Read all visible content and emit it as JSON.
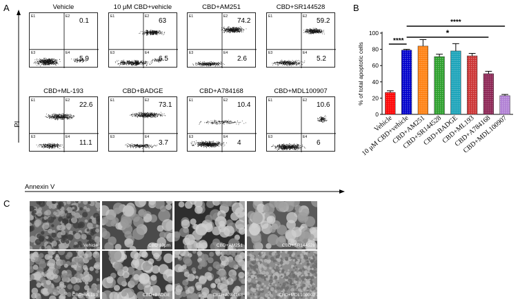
{
  "panel_a": {
    "letter": "A",
    "y_axis_label": "PI",
    "x_axis_label": "Annexin V",
    "quadrant_labels": [
      "E1",
      "E2",
      "E3",
      "E4"
    ],
    "plots": [
      {
        "title": "Vehicle",
        "upper_right": "0.1",
        "lower_right": "5.9"
      },
      {
        "title": "10 μM CBD+vehicle",
        "upper_right": "63",
        "lower_right": "6.5"
      },
      {
        "title": "CBD+AM251",
        "upper_right": "74.2",
        "lower_right": "2.6"
      },
      {
        "title": "CBD+SR144528",
        "upper_right": "59.2",
        "lower_right": "5.2"
      },
      {
        "title": "CBD+ML-193",
        "upper_right": "22.6",
        "lower_right": "11.1"
      },
      {
        "title": "CBD+BADGE",
        "upper_right": "73.1",
        "lower_right": "3.7"
      },
      {
        "title": "CBD+A784168",
        "upper_right": "10.4",
        "lower_right": "4"
      },
      {
        "title": "CBD+MDL100907",
        "upper_right": "10.6",
        "lower_right": "6"
      }
    ]
  },
  "panel_b": {
    "letter": "B",
    "significance": {
      "top": "****",
      "middle": "*",
      "left": "****"
    }
  },
  "chart_data": {
    "type": "bar",
    "title": "",
    "xlabel": "",
    "ylabel": "% of total apoptotic cells",
    "ylim": [
      0,
      100
    ],
    "yticks": [
      "0",
      "20",
      "40",
      "60",
      "80",
      "100"
    ],
    "categories": [
      "Vehicle",
      "10 μM CBD+vehicle",
      "CBD+AM251",
      "CBD+SR144528",
      "CBD+BADGE",
      "CBD+ML193",
      "CBD+A784168",
      "CBD+MDL100907"
    ],
    "values": [
      27,
      79,
      84,
      71,
      78,
      72,
      50,
      23
    ],
    "errors": [
      2,
      1,
      8,
      3,
      9,
      3,
      3,
      1.5
    ],
    "colors": [
      "#ff0000",
      "#0000cc",
      "#ff7f0e",
      "#2ca02c",
      "#17a2b8",
      "#cc3333",
      "#8b2252",
      "#b07fd4"
    ]
  },
  "panel_c": {
    "letter": "C",
    "images": [
      {
        "label": "Vehicle"
      },
      {
        "label": "CBD 10μm"
      },
      {
        "label": "CBD+AM251"
      },
      {
        "label": "CBD+SR144528"
      },
      {
        "label": "CBD+ML193"
      },
      {
        "label": "CBD+BADGE"
      },
      {
        "label": "CBD+A784168"
      },
      {
        "label": "CBD+MDL100907"
      }
    ]
  }
}
